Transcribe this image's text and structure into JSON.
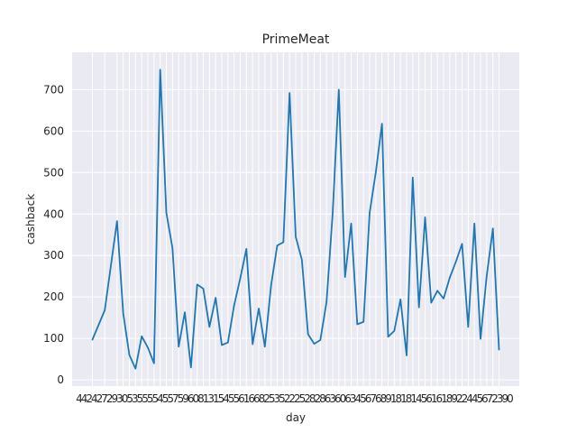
{
  "chart_data": {
    "type": "line",
    "title": "PrimeMeat",
    "xlabel": "day",
    "ylabel": "cashback",
    "ylim": [
      -15,
      790
    ],
    "yticks": [
      0,
      100,
      200,
      300,
      400,
      500,
      600,
      700
    ],
    "x": [
      4,
      6,
      8,
      9,
      10,
      11,
      12,
      13,
      14,
      15,
      16,
      17,
      18,
      19,
      20,
      21,
      22,
      23,
      24,
      25,
      26,
      27,
      28,
      29,
      30,
      31,
      32,
      33,
      34,
      35,
      36,
      37,
      38,
      39,
      40,
      41,
      42,
      43,
      44,
      45,
      46,
      47,
      48,
      49,
      50,
      51,
      52,
      53,
      54,
      55,
      56,
      57,
      58,
      59,
      60,
      61,
      62,
      63,
      64,
      65,
      66,
      67,
      68,
      69,
      70
    ],
    "xtick_labels": [
      "4",
      "4",
      "2",
      "4",
      "2",
      "7",
      "2",
      "9",
      "3",
      "0",
      "5",
      "3",
      "5",
      "5",
      "5",
      "5",
      "4",
      "5",
      "5",
      "7",
      "5",
      "9",
      "6",
      "0",
      "8",
      "1",
      "3",
      "1",
      "5",
      "4",
      "5",
      "5",
      "6",
      "1",
      "6",
      "6",
      "8",
      "2",
      "5",
      "3",
      "5",
      "2",
      "2",
      "2",
      "5",
      "2",
      "8",
      "2",
      "8",
      "6",
      "3",
      "6",
      "0",
      "6",
      "3",
      "4",
      "5",
      "6",
      "7",
      "6",
      "8",
      "9",
      "1",
      "8",
      "1",
      "8",
      "1",
      "4",
      "5",
      "6",
      "1",
      "6",
      "1",
      "8",
      "9",
      "2",
      "2",
      "4",
      "4",
      "5",
      "6",
      "7",
      "2",
      "3",
      "9",
      "0"
    ],
    "grid": true,
    "legend": "none",
    "series": [
      {
        "color": "#1f77b4",
        "values": [
          97,
          168,
          383,
          160,
          60,
          27,
          105,
          78,
          40,
          748,
          403,
          318,
          80,
          163,
          30,
          230,
          220,
          128,
          198,
          84,
          90,
          180,
          245,
          316,
          86,
          172,
          80,
          228,
          324,
          332,
          692,
          345,
          290,
          110,
          87,
          96,
          188,
          402,
          700,
          248,
          377,
          134,
          140,
          403,
          500,
          618,
          104,
          118,
          194,
          59,
          488,
          175,
          392,
          186,
          215,
          196,
          246,
          285,
          328,
          128,
          377,
          99,
          250,
          365,
          73
        ]
      }
    ]
  },
  "theme": {
    "plot_background": "#eaeaf2",
    "grid_color": "#ffffff",
    "text_color": "#262626"
  }
}
